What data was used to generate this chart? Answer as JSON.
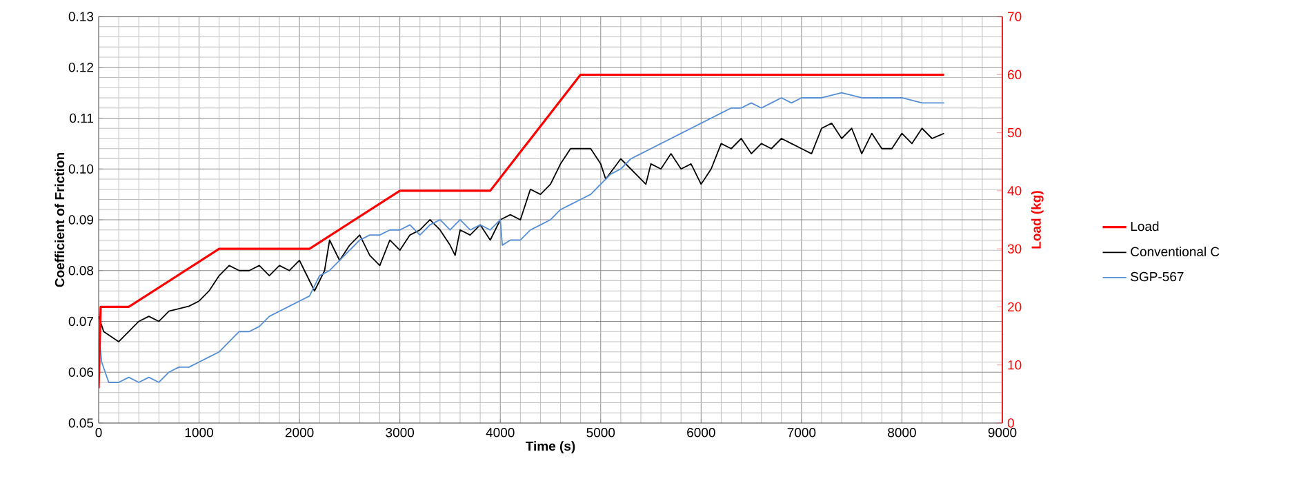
{
  "chart_data": {
    "type": "line",
    "xlabel": "Time (s)",
    "ylabel": "Coefficient of Friction",
    "y2label": "Load (kg)",
    "xlim": [
      0,
      9000
    ],
    "xticks": [
      0,
      1000,
      2000,
      3000,
      4000,
      5000,
      6000,
      7000,
      8000,
      9000
    ],
    "ylim": [
      0.05,
      0.13
    ],
    "yticks": [
      {
        "value": 0.05,
        "label": "0.05"
      },
      {
        "value": 0.06,
        "label": "0.06"
      },
      {
        "value": 0.07,
        "label": "0.07"
      },
      {
        "value": 0.08,
        "label": "0.08"
      },
      {
        "value": 0.09,
        "label": "0.09"
      },
      {
        "value": 0.1,
        "label": "0.10"
      },
      {
        "value": 0.11,
        "label": "0.11"
      },
      {
        "value": 0.12,
        "label": "0.12"
      },
      {
        "value": 0.13,
        "label": "0.13"
      }
    ],
    "y2lim": [
      0,
      70
    ],
    "y2ticks": [
      0,
      10,
      20,
      30,
      40,
      50,
      60,
      70
    ],
    "grid": true,
    "legend": "right",
    "series": [
      {
        "name": "Load",
        "color": "#ff0000",
        "axis": "y2",
        "x": [
          0,
          20,
          300,
          1200,
          2100,
          3000,
          3900,
          4800,
          8420
        ],
        "values": [
          6,
          20,
          20,
          30,
          30,
          40,
          40,
          60,
          60
        ]
      },
      {
        "name": "Conventional C",
        "color": "#000000",
        "x": [
          0,
          50,
          200,
          300,
          400,
          500,
          600,
          700,
          900,
          1000,
          1100,
          1200,
          1300,
          1400,
          1500,
          1600,
          1700,
          1800,
          1900,
          2000,
          2100,
          2150,
          2250,
          2300,
          2400,
          2500,
          2600,
          2700,
          2800,
          2900,
          3000,
          3100,
          3200,
          3300,
          3400,
          3500,
          3550,
          3600,
          3700,
          3800,
          3900,
          4000,
          4100,
          4200,
          4300,
          4400,
          4500,
          4600,
          4700,
          4800,
          4900,
          5000,
          5050,
          5200,
          5300,
          5450,
          5500,
          5600,
          5700,
          5800,
          5900,
          6000,
          6100,
          6200,
          6300,
          6400,
          6500,
          6600,
          6700,
          6800,
          6900,
          7000,
          7100,
          7200,
          7300,
          7400,
          7500,
          7600,
          7700,
          7800,
          7900,
          8000,
          8100,
          8200,
          8300,
          8420
        ],
        "values": [
          0.071,
          0.068,
          0.066,
          0.068,
          0.07,
          0.071,
          0.07,
          0.072,
          0.073,
          0.074,
          0.076,
          0.079,
          0.081,
          0.08,
          0.08,
          0.081,
          0.079,
          0.081,
          0.08,
          0.082,
          0.078,
          0.076,
          0.08,
          0.086,
          0.082,
          0.085,
          0.087,
          0.083,
          0.081,
          0.086,
          0.084,
          0.087,
          0.088,
          0.09,
          0.088,
          0.085,
          0.083,
          0.088,
          0.087,
          0.089,
          0.086,
          0.09,
          0.091,
          0.09,
          0.096,
          0.095,
          0.097,
          0.101,
          0.104,
          0.104,
          0.104,
          0.101,
          0.098,
          0.102,
          0.1,
          0.097,
          0.101,
          0.1,
          0.103,
          0.1,
          0.101,
          0.097,
          0.1,
          0.105,
          0.104,
          0.106,
          0.103,
          0.105,
          0.104,
          0.106,
          0.105,
          0.104,
          0.103,
          0.108,
          0.109,
          0.106,
          0.108,
          0.103,
          0.107,
          0.104,
          0.104,
          0.107,
          0.105,
          0.108,
          0.106,
          0.107
        ]
      },
      {
        "name": "SGP-567",
        "color": "#558ed5",
        "x": [
          0,
          30,
          100,
          200,
          300,
          400,
          500,
          600,
          700,
          800,
          900,
          1000,
          1100,
          1200,
          1300,
          1400,
          1500,
          1600,
          1700,
          1800,
          1900,
          2000,
          2100,
          2200,
          2300,
          2400,
          2500,
          2600,
          2700,
          2800,
          2900,
          3000,
          3100,
          3200,
          3300,
          3400,
          3500,
          3600,
          3700,
          3800,
          3900,
          4000,
          4020,
          4100,
          4200,
          4300,
          4400,
          4500,
          4600,
          4700,
          4800,
          4900,
          5000,
          5100,
          5200,
          5300,
          5400,
          5500,
          5600,
          5700,
          5800,
          5900,
          6000,
          6100,
          6200,
          6300,
          6400,
          6500,
          6600,
          6700,
          6800,
          6900,
          7000,
          7200,
          7400,
          7600,
          7800,
          8000,
          8200,
          8420
        ],
        "values": [
          0.068,
          0.062,
          0.058,
          0.058,
          0.059,
          0.058,
          0.059,
          0.058,
          0.06,
          0.061,
          0.061,
          0.062,
          0.063,
          0.064,
          0.066,
          0.068,
          0.068,
          0.069,
          0.071,
          0.072,
          0.073,
          0.074,
          0.075,
          0.079,
          0.08,
          0.082,
          0.084,
          0.086,
          0.087,
          0.087,
          0.088,
          0.088,
          0.089,
          0.087,
          0.089,
          0.09,
          0.088,
          0.09,
          0.088,
          0.089,
          0.088,
          0.09,
          0.085,
          0.086,
          0.086,
          0.088,
          0.089,
          0.09,
          0.092,
          0.093,
          0.094,
          0.095,
          0.097,
          0.099,
          0.1,
          0.102,
          0.103,
          0.104,
          0.105,
          0.106,
          0.107,
          0.108,
          0.109,
          0.11,
          0.111,
          0.112,
          0.112,
          0.113,
          0.112,
          0.113,
          0.114,
          0.113,
          0.114,
          0.114,
          0.115,
          0.114,
          0.114,
          0.114,
          0.113,
          0.113
        ]
      }
    ]
  }
}
